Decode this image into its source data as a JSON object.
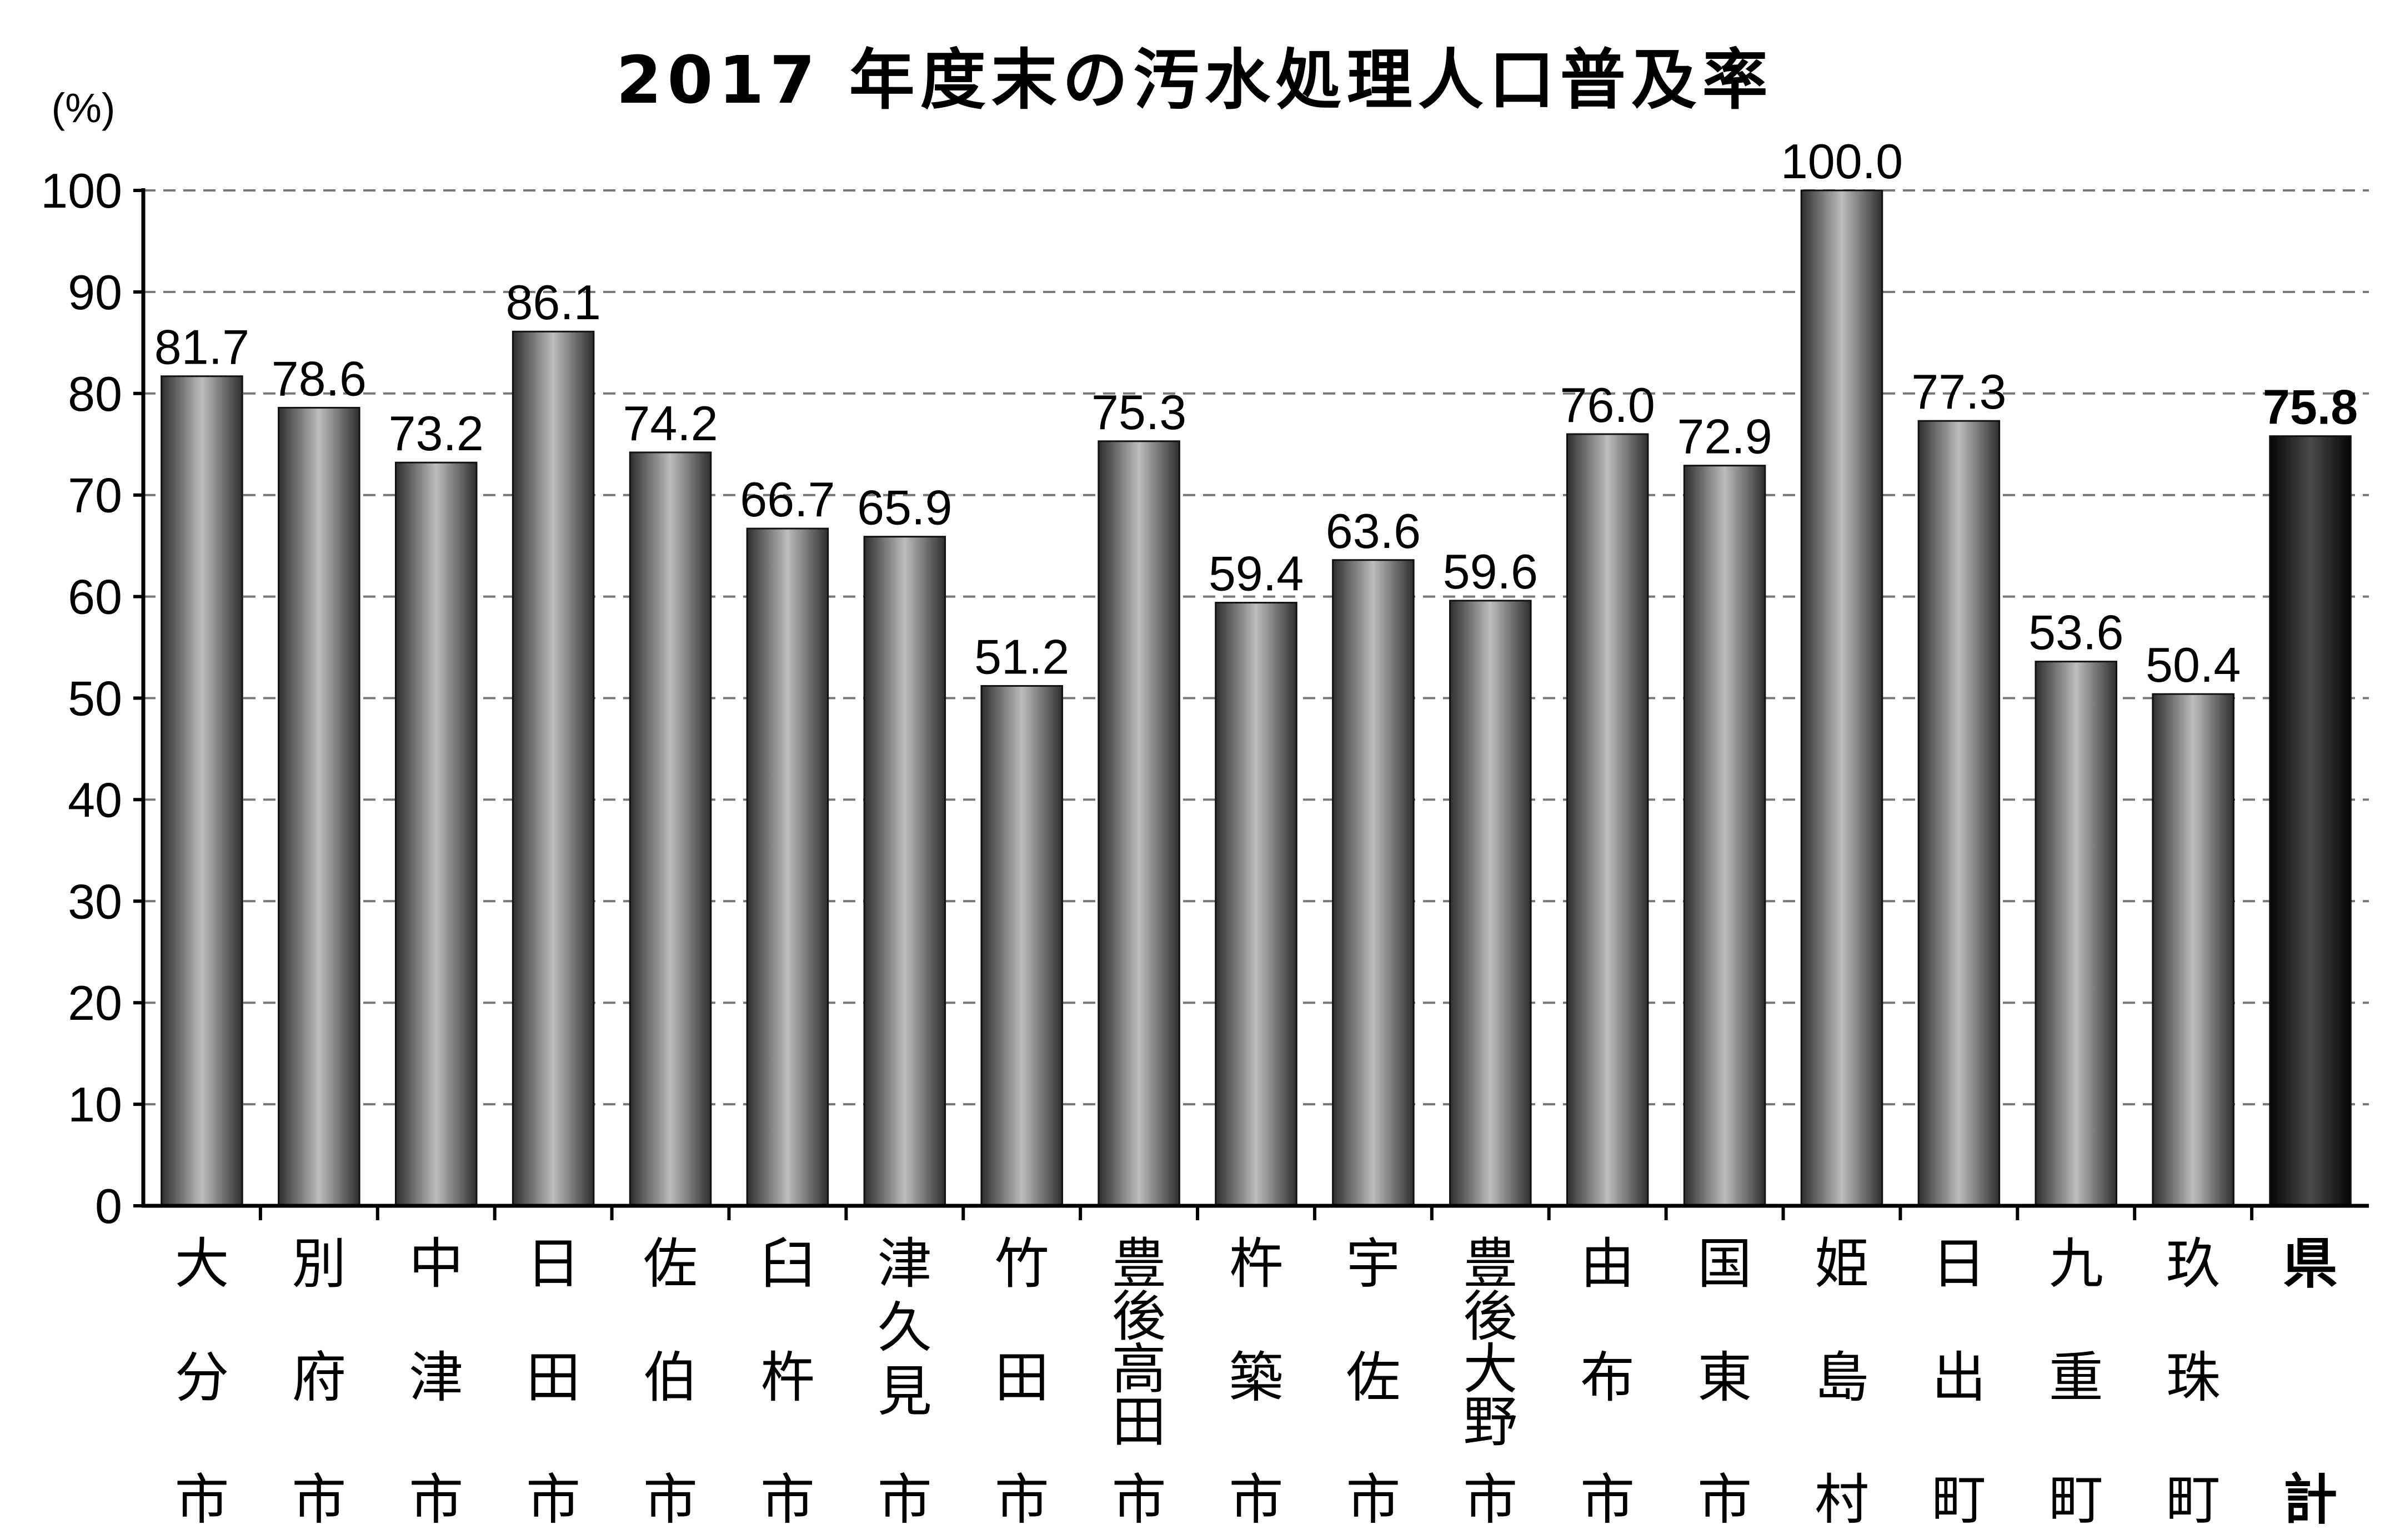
{
  "chart_data": {
    "type": "bar",
    "title": "2017 年度末の汚水処理人口普及率",
    "ylabel": "(%)",
    "xlabel": "",
    "ylim": [
      0,
      100
    ],
    "yticks": [
      "0",
      "10",
      "20",
      "30",
      "40",
      "50",
      "60",
      "70",
      "80",
      "90",
      "100"
    ],
    "grid": true,
    "categories": [
      "大分市",
      "別府市",
      "中津市",
      "日田市",
      "佐伯市",
      "臼杵市",
      "津久見市",
      "竹田市",
      "豊後高田市",
      "杵築市",
      "宇佐市",
      "豊後大野市",
      "由布市",
      "国東市",
      "姫島村",
      "日出町",
      "九重町",
      "玖珠町",
      "県計"
    ],
    "category_lines": [
      [
        "大",
        "分",
        "市"
      ],
      [
        "別",
        "府",
        "市"
      ],
      [
        "中",
        "津",
        "市"
      ],
      [
        "日",
        "田",
        "市"
      ],
      [
        "佐",
        "伯",
        "市"
      ],
      [
        "臼",
        "杵",
        "市"
      ],
      [
        "津",
        "久",
        "見",
        "市"
      ],
      [
        "竹",
        "田",
        "市"
      ],
      [
        "豊",
        "後",
        "高",
        "田",
        "市"
      ],
      [
        "杵",
        "築",
        "市"
      ],
      [
        "宇",
        "佐",
        "市"
      ],
      [
        "豊",
        "後",
        "大",
        "野",
        "市"
      ],
      [
        "由",
        "布",
        "市"
      ],
      [
        "国",
        "東",
        "市"
      ],
      [
        "姫",
        "島",
        "村"
      ],
      [
        "日",
        "出",
        "町"
      ],
      [
        "九",
        "重",
        "町"
      ],
      [
        "玖",
        "珠",
        "町"
      ],
      [
        "県",
        "計"
      ]
    ],
    "values": [
      81.7,
      78.6,
      73.2,
      86.1,
      74.2,
      66.7,
      65.9,
      51.2,
      75.3,
      59.4,
      63.6,
      59.6,
      76.0,
      72.9,
      100.0,
      77.3,
      53.6,
      50.4,
      75.8
    ],
    "value_labels": [
      "81.7",
      "78.6",
      "73.2",
      "86.1",
      "74.2",
      "66.7",
      "65.9",
      "51.2",
      "75.3",
      "59.4",
      "63.6",
      "59.6",
      "76.0",
      "72.9",
      "100.0",
      "77.3",
      "53.6",
      "50.4",
      "75.8"
    ],
    "highlight_index": 18,
    "colors": {
      "bar_edge": "#2e2e2e",
      "bar_center": "#bdbdbd",
      "highlight_edge": "#050505",
      "highlight_center": "#4a4a4a",
      "grid": "#777777",
      "axis": "#000000"
    }
  }
}
